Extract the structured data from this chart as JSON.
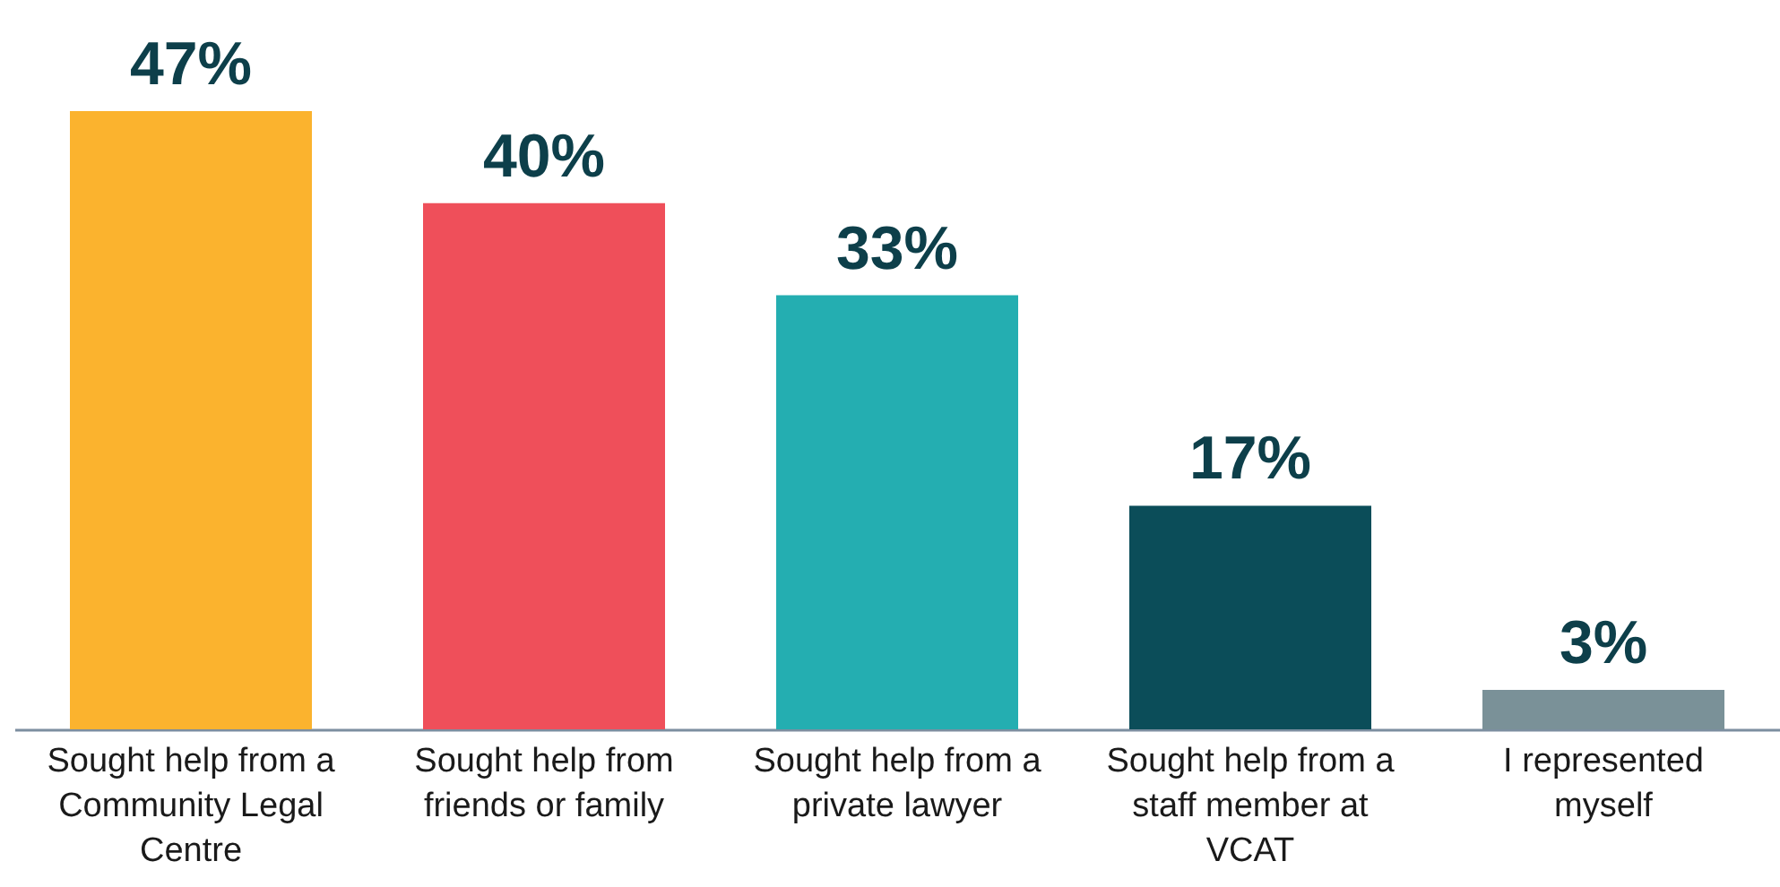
{
  "chart_data": {
    "type": "bar",
    "categories": [
      "Sought help from a Community Legal Centre",
      "Sought help from friends or family",
      "Sought help from a private lawyer",
      "Sought help from a staff member at VCAT",
      "I represented myself"
    ],
    "values": [
      47,
      40,
      33,
      17,
      3
    ],
    "colors": [
      "#fbb32e",
      "#ef4f5a",
      "#24aeb1",
      "#0b4d59",
      "#7a9198"
    ],
    "value_labels": [
      "47%",
      "40%",
      "33%",
      "17%",
      "3%"
    ]
  }
}
